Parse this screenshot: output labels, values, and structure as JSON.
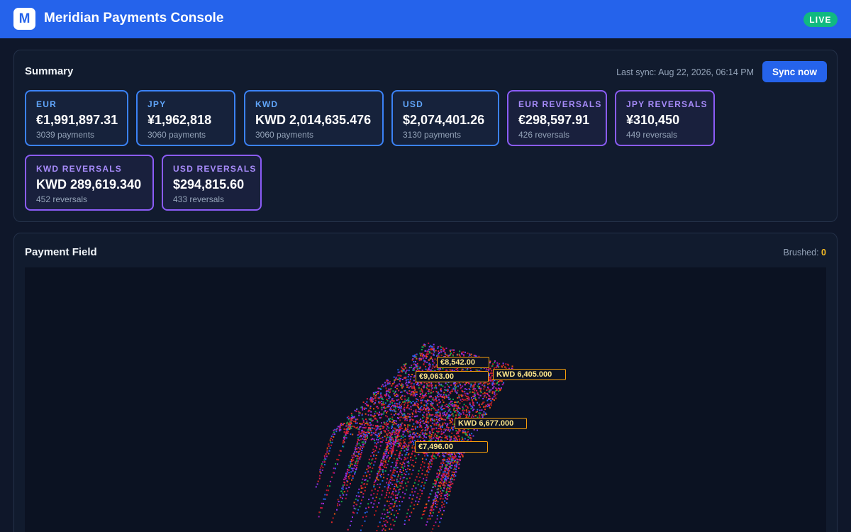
{
  "app": {
    "logo_letter": "M",
    "title": "Meridian Payments Console",
    "status": "LIVE"
  },
  "summary": {
    "title": "Summary",
    "last_sync": "Last sync: Aug 22, 2026, 06:14 PM",
    "sync_button": "Sync now",
    "cards": [
      {
        "label": "EUR",
        "value": "€1,991,897.31",
        "sub": "3039 payments",
        "kind": "payments"
      },
      {
        "label": "JPY",
        "value": "¥1,962,818",
        "sub": "3060 payments",
        "kind": "payments"
      },
      {
        "label": "KWD",
        "value": "KWD 2,014,635.476",
        "sub": "3060 payments",
        "kind": "payments"
      },
      {
        "label": "USD",
        "value": "$2,074,401.26",
        "sub": "3130 payments",
        "kind": "payments"
      },
      {
        "label": "EUR REVERSALS",
        "value": "€298,597.91",
        "sub": "426 reversals",
        "kind": "reversals"
      },
      {
        "label": "JPY REVERSALS",
        "value": "¥310,450",
        "sub": "449 reversals",
        "kind": "reversals"
      },
      {
        "label": "KWD REVERSALS",
        "value": "KWD 289,619.340",
        "sub": "452 reversals",
        "kind": "reversals"
      },
      {
        "label": "USD REVERSALS",
        "value": "$294,815.60",
        "sub": "433 reversals",
        "kind": "reversals"
      }
    ]
  },
  "field": {
    "title": "Payment Field",
    "brushed_label": "Brushed:",
    "brushed_count": "0",
    "labels": [
      {
        "text": "€8,542.00"
      },
      {
        "text": "€9,063.00"
      },
      {
        "text": "KWD 6,405.000"
      },
      {
        "text": "KWD 6,677.000"
      },
      {
        "text": "€7,496.00"
      }
    ],
    "colors": [
      "#dc2626",
      "#b91c1c",
      "#e11d48",
      "#9333ea",
      "#7c3aed",
      "#2563eb",
      "#16a34a",
      "#ea580c",
      "#be123c",
      "#a21caf"
    ]
  }
}
